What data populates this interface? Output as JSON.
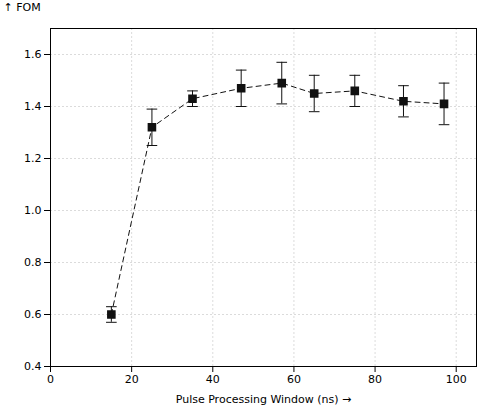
{
  "chart_data": {
    "type": "line",
    "x": [
      15,
      25,
      35,
      47,
      57,
      65,
      75,
      87,
      97
    ],
    "values": [
      0.6,
      1.32,
      1.43,
      1.47,
      1.49,
      1.45,
      1.46,
      1.42,
      1.41
    ],
    "yerr": [
      0.03,
      0.07,
      0.03,
      0.07,
      0.08,
      0.07,
      0.06,
      0.06,
      0.08
    ],
    "xlabel": "Pulse Processing Window (ns)",
    "ylabel": "FOM",
    "xlim": [
      0,
      105
    ],
    "ylim": [
      0.4,
      1.7
    ],
    "xticks": [
      0,
      20,
      40,
      60,
      80,
      100
    ],
    "yticks": [
      0.4,
      0.6,
      0.8,
      {
        "value": 1.0,
        "label": "1.0"
      },
      1.2,
      1.4,
      1.6
    ],
    "color": "#111111",
    "marker": "square",
    "line_style": "dashed",
    "grid": true
  }
}
